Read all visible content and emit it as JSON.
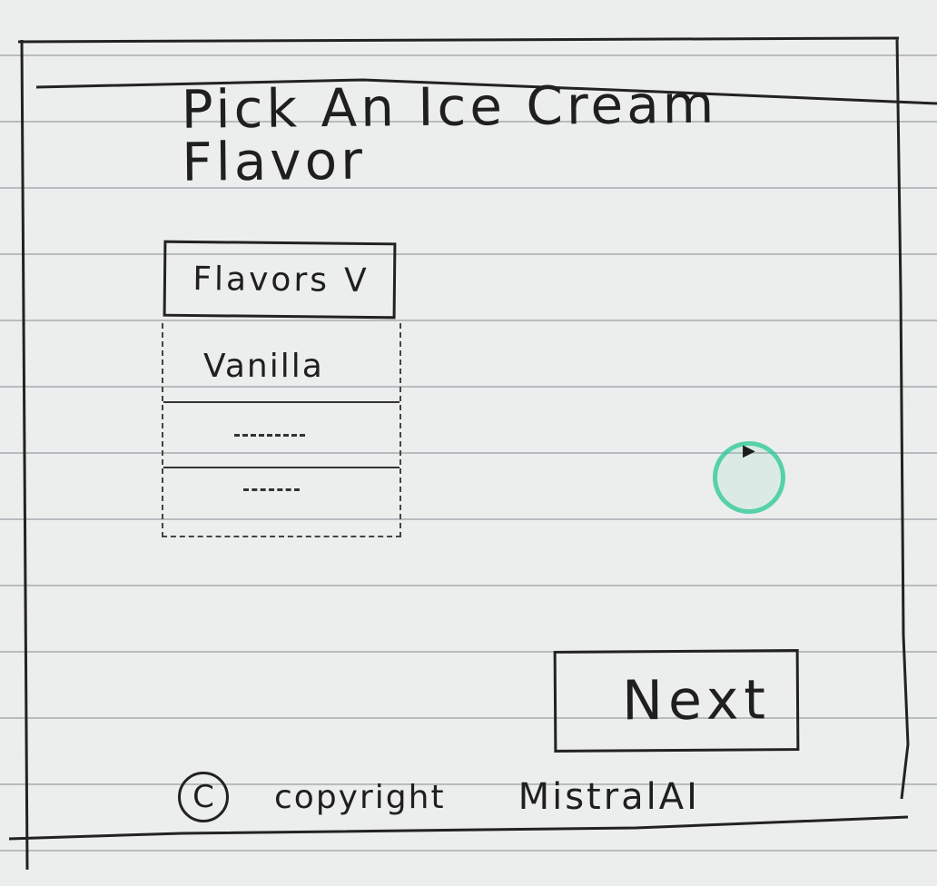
{
  "title": "Pick An Ice Cream Flavor",
  "dropdown": {
    "label": "Flavors",
    "chevron": "V",
    "options": [
      "Vanilla",
      "",
      ""
    ]
  },
  "next_button": {
    "label": "Next"
  },
  "footer": {
    "copyright_symbol": "C",
    "copyright_text": "copyright",
    "brand": "MistralAI"
  },
  "icons": {
    "copyright": "copyright-icon",
    "chevron": "chevron-down-icon",
    "cursor": "mouse-cursor-icon"
  },
  "colors": {
    "ink": "#1f1f1f",
    "paper": "#eceded",
    "ruled_line": "#b8bcc0",
    "cursor_highlight": "#28c896"
  }
}
